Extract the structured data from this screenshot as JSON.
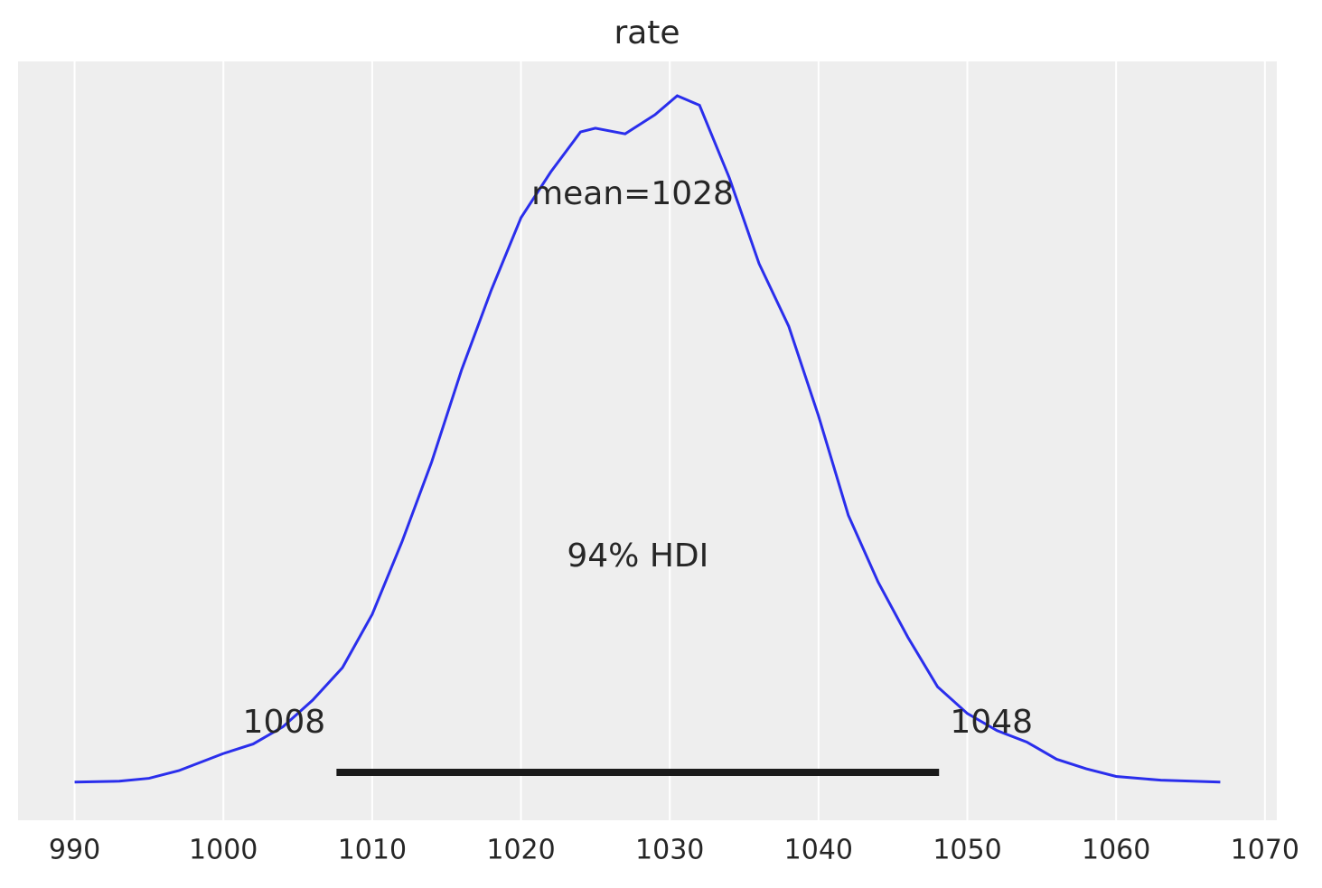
{
  "chart_data": {
    "type": "kde",
    "title": "rate",
    "x": [
      990,
      993,
      995,
      997,
      1000,
      1002,
      1004,
      1006,
      1008,
      1010,
      1012,
      1014,
      1016,
      1018,
      1020,
      1022,
      1024,
      1025,
      1027,
      1029,
      1030.5,
      1032,
      1034,
      1036,
      1038,
      1040,
      1042,
      1044,
      1046,
      1048,
      1050,
      1052,
      1054,
      1056,
      1058,
      1060,
      1063,
      1067
    ],
    "values": [
      0,
      5e-05,
      0.0002,
      0.0006,
      0.0015,
      0.002,
      0.0029,
      0.0043,
      0.006,
      0.0088,
      0.0126,
      0.0168,
      0.0216,
      0.0258,
      0.0296,
      0.032,
      0.0341,
      0.0343,
      0.034,
      0.035,
      0.036,
      0.0355,
      0.0317,
      0.0272,
      0.0239,
      0.0192,
      0.014,
      0.0105,
      0.0076,
      0.005,
      0.0036,
      0.0027,
      0.0021,
      0.0012,
      0.0007,
      0.0003,
      0.0001,
      0
    ],
    "color": "#2a2eec",
    "mean_label": "mean=1028",
    "hdi": {
      "label": "94% HDI",
      "values": [
        1007.6,
        1048.1
      ],
      "value_labels": [
        "1008",
        "1048"
      ],
      "color": "#1a1a1a"
    },
    "xlim": [
      986.2,
      1070.8
    ],
    "ylim": [
      -0.002,
      0.0378
    ],
    "xticks": [
      990,
      1000,
      1010,
      1020,
      1030,
      1040,
      1050,
      1060,
      1070
    ],
    "grid": true
  }
}
